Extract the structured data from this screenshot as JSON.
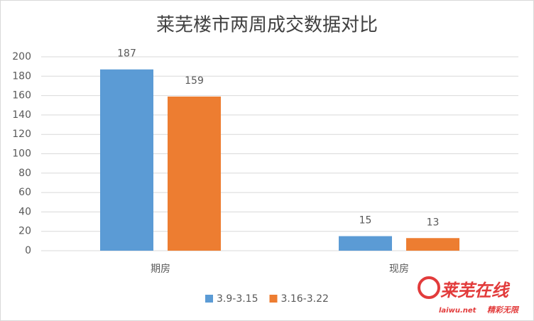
{
  "chart_data": {
    "type": "bar",
    "title": "莱芜楼市两周成交数据对比",
    "categories": [
      "期房",
      "现房"
    ],
    "series": [
      {
        "name": "3.9-3.15",
        "color": "#5b9bd5",
        "values": [
          187,
          15
        ]
      },
      {
        "name": "3.16-3.22",
        "color": "#ed7d31",
        "values": [
          159,
          13
        ]
      }
    ],
    "ylim": [
      0,
      200
    ],
    "yticks": [
      0,
      20,
      40,
      60,
      80,
      100,
      120,
      140,
      160,
      180,
      200
    ],
    "grid": true,
    "legend": "bottom"
  },
  "watermark": {
    "brand": "莱芜在线",
    "site": "laiwu.net",
    "slogan": "精彩无限"
  }
}
